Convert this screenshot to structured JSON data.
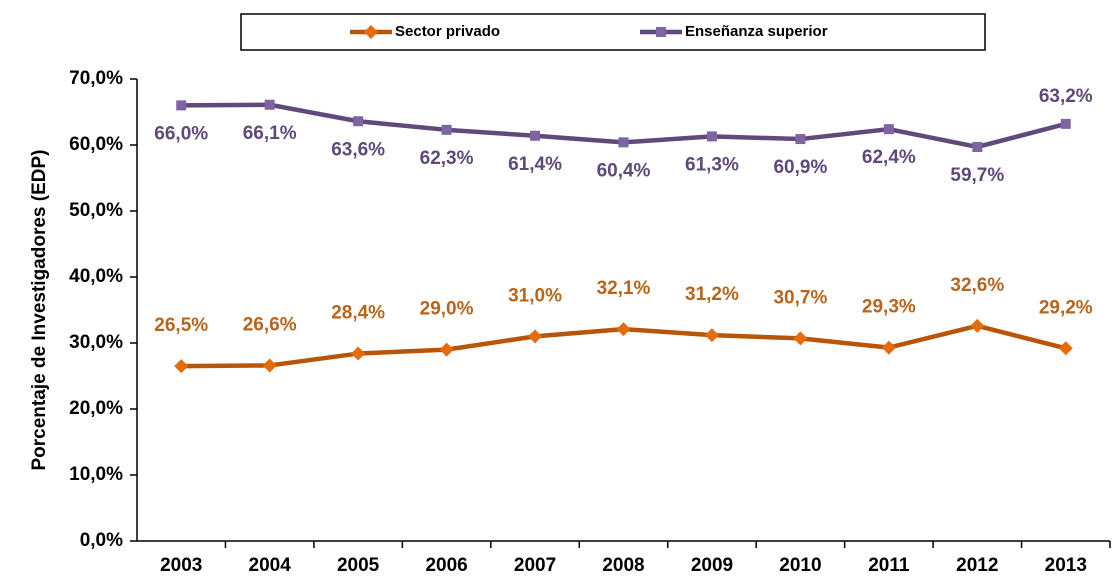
{
  "chart_data": {
    "type": "line",
    "y_label": "Porcentaje de Investigadores (EDP)",
    "categories": [
      "2003",
      "2004",
      "2005",
      "2006",
      "2007",
      "2008",
      "2009",
      "2010",
      "2011",
      "2012",
      "2013"
    ],
    "series": [
      {
        "name": "Sector privado",
        "color": "#b85509",
        "marker_color": "#e46c0a",
        "marker": "diamond",
        "label_color": "#b8651b",
        "values": [
          26.5,
          26.6,
          28.4,
          29.0,
          31.0,
          32.1,
          31.2,
          30.7,
          29.3,
          32.6,
          29.2
        ],
        "value_labels": [
          "26,5%",
          "26,6%",
          "28,4%",
          "29,0%",
          "31,0%",
          "32,1%",
          "31,2%",
          "30,7%",
          "29,3%",
          "32,6%",
          "29,2%"
        ]
      },
      {
        "name": "Enseñanza superior",
        "color": "#604a7b",
        "marker_color": "#8064a2",
        "marker": "square",
        "label_color": "#5f497a",
        "values": [
          66.0,
          66.1,
          63.6,
          62.3,
          61.4,
          60.4,
          61.3,
          60.9,
          62.4,
          59.7,
          63.2
        ],
        "value_labels": [
          "66,0%",
          "66,1%",
          "63,6%",
          "62,3%",
          "61,4%",
          "60,4%",
          "61,3%",
          "60,9%",
          "62,4%",
          "59,7%",
          "63,2%"
        ]
      }
    ],
    "ylim": [
      0,
      70
    ],
    "yticks": [
      {
        "value": 0,
        "label": "0,0%"
      },
      {
        "value": 10,
        "label": "10,0%"
      },
      {
        "value": 20,
        "label": "20,0%"
      },
      {
        "value": 30,
        "label": "30,0%"
      },
      {
        "value": 40,
        "label": "40,0%"
      },
      {
        "value": 50,
        "label": "50,0%"
      },
      {
        "value": 60,
        "label": "60,0%"
      },
      {
        "value": 70,
        "label": "70,0%"
      }
    ],
    "grid": false,
    "legend": "top"
  }
}
